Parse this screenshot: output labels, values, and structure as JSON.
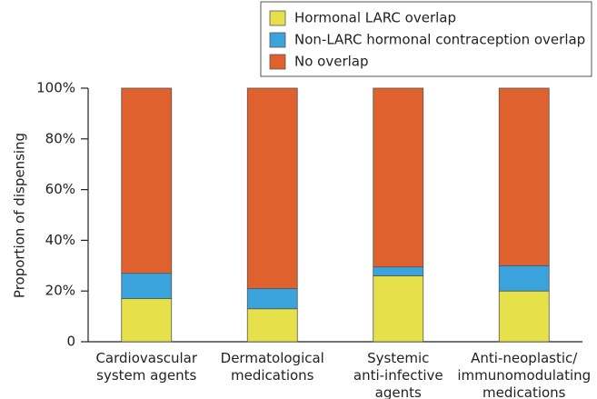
{
  "chart_data": {
    "type": "stacked_bar",
    "ylabel": "Proportion of dispensing",
    "categories": [
      [
        "Cardiovascular",
        "system agents"
      ],
      [
        "Dermatological",
        "medications"
      ],
      [
        "Systemic",
        "anti-infective",
        "agents"
      ],
      [
        "Anti-neoplastic/",
        "immunomodulating",
        "medications"
      ]
    ],
    "series": [
      {
        "name": "Hormonal LARC overlap",
        "color": "#e6e14a",
        "values": [
          17,
          13,
          26,
          20
        ]
      },
      {
        "name": "Non-LARC hormonal contraception overlap",
        "color": "#3aa3db",
        "values": [
          10,
          8,
          3.5,
          10
        ]
      },
      {
        "name": "No overlap",
        "color": "#df612e",
        "values": [
          73,
          79,
          70.5,
          70
        ]
      }
    ],
    "ylim": [
      0,
      100
    ],
    "yticks": [
      0,
      {
        "value": 20,
        "label": "20%"
      },
      {
        "value": 40,
        "label": "40%"
      },
      {
        "value": 60,
        "label": "60%"
      },
      {
        "value": 80,
        "label": "80%"
      },
      {
        "value": 100,
        "label": "100%"
      }
    ],
    "legend": "top-right"
  }
}
